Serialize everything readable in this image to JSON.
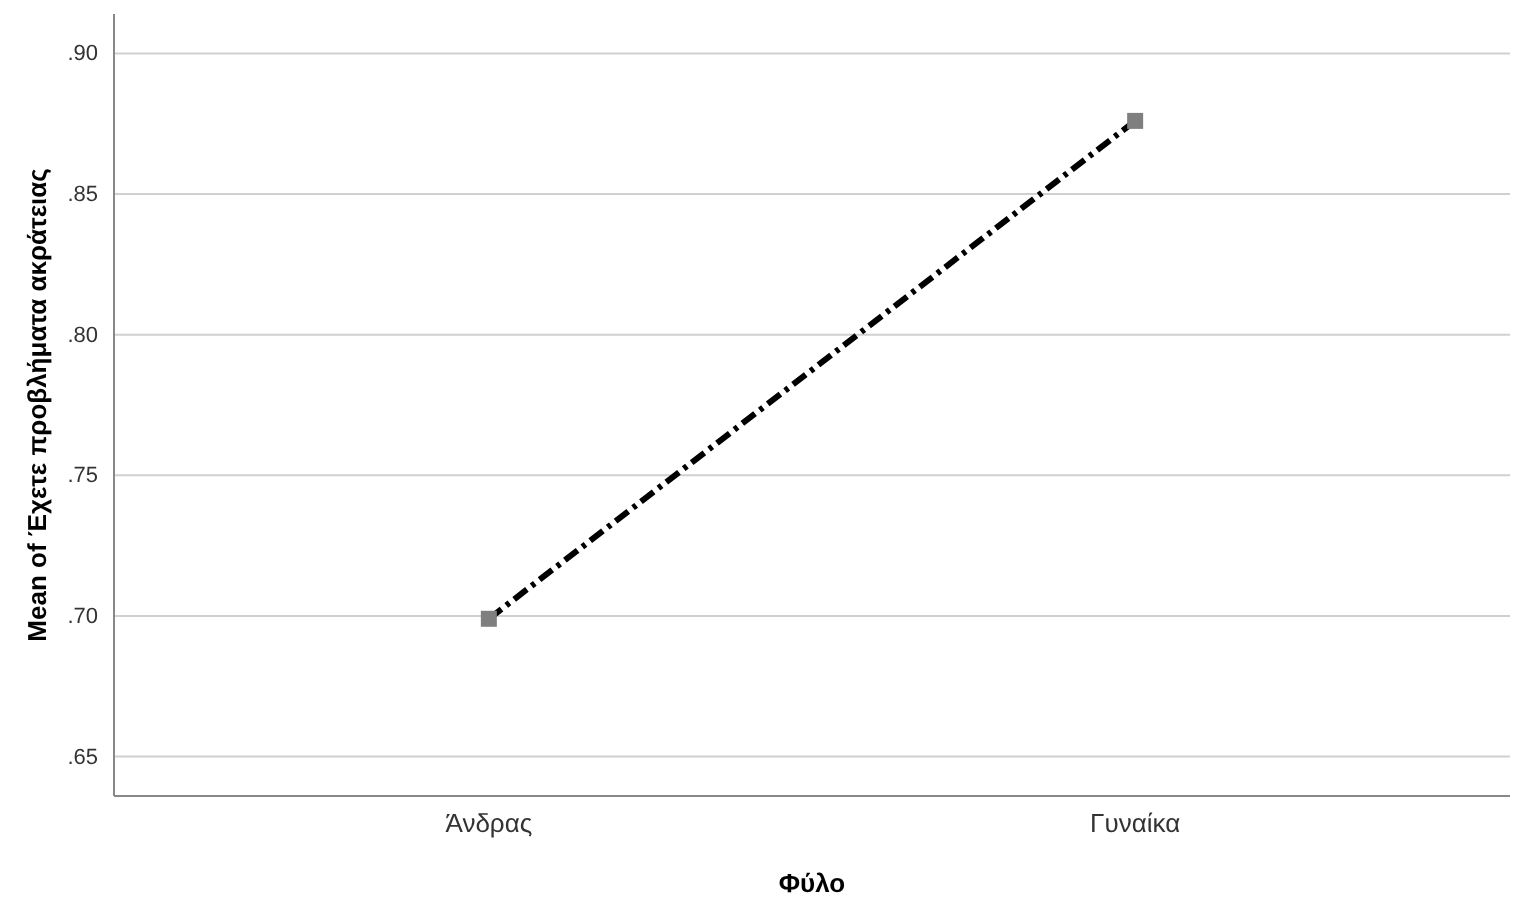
{
  "chart_data": {
    "type": "line",
    "xlabel": "Φύλο",
    "ylabel": "Mean of Έχετε προβλήματα ακράτειας",
    "categories": [
      "Άνδρας",
      "Γυναίκα"
    ],
    "series": [
      {
        "color": "#000000",
        "values": [
          0.699,
          0.876
        ]
      }
    ],
    "ylim": [
      0.636,
      0.914
    ],
    "yticks": [
      {
        "value": 0.65,
        "label": ".65"
      },
      {
        "value": 0.7,
        "label": ".70"
      },
      {
        "value": 0.75,
        "label": ".75"
      },
      {
        "value": 0.8,
        "label": ".80"
      },
      {
        "value": 0.85,
        "label": ".85"
      },
      {
        "value": 0.9,
        "label": ".90"
      }
    ],
    "grid": "y",
    "marker": "square",
    "line_style": "dashed"
  }
}
